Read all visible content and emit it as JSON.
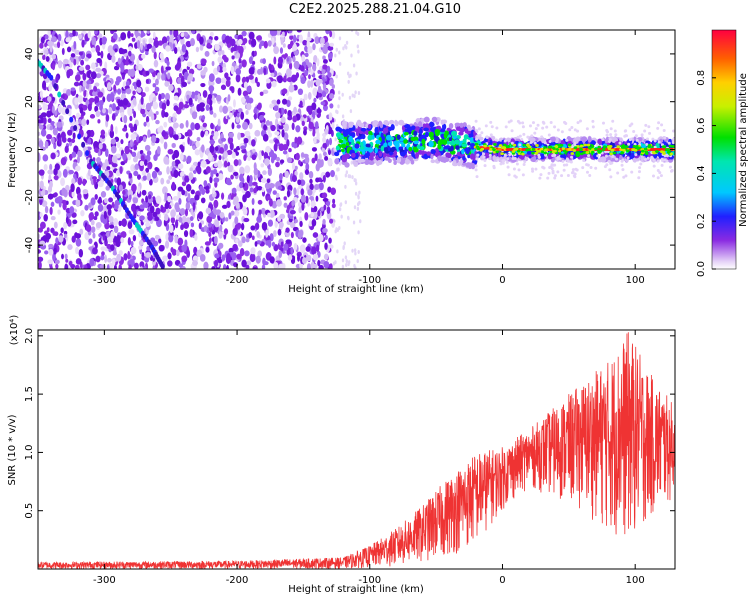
{
  "title": "C2E2.2025.288.21.04.G10",
  "chart_data": [
    {
      "type": "heatmap",
      "xlabel": "Height of straight line (km)",
      "ylabel": "Frequency (Hz)",
      "xlim": [
        -350,
        130
      ],
      "ylim": [
        -50,
        50
      ],
      "xticks": [
        -300,
        -200,
        -100,
        0,
        100
      ],
      "yticks": [
        -40,
        -20,
        0,
        20,
        40
      ],
      "colorbar": {
        "label": "Normalized spectral amplitude",
        "range": [
          0,
          1
        ],
        "ticks": [
          0.0,
          0.2,
          0.4,
          0.6,
          0.8
        ]
      },
      "noise_region_x": [
        -350,
        -127
      ],
      "signal_track": [
        {
          "x": -125,
          "y": 2
        },
        {
          "x": -100,
          "y": 3
        },
        {
          "x": -75,
          "y": 3
        },
        {
          "x": -50,
          "y": 4
        },
        {
          "x": -30,
          "y": 2
        },
        {
          "x": -20,
          "y": 1
        },
        {
          "x": 0,
          "y": 0
        },
        {
          "x": 50,
          "y": 0
        },
        {
          "x": 100,
          "y": 0
        },
        {
          "x": 130,
          "y": 0
        }
      ],
      "diagonal_trace": [
        {
          "x": -355,
          "y": 40
        },
        {
          "x": -340,
          "y": 30
        },
        {
          "x": -310,
          "y": -5
        },
        {
          "x": -295,
          "y": -15
        },
        {
          "x": -280,
          "y": -28
        },
        {
          "x": -265,
          "y": -40
        },
        {
          "x": -255,
          "y": -50
        }
      ]
    },
    {
      "type": "line",
      "xlabel": "Height of straight line (km)",
      "ylabel": "SNR (10 * v/v)",
      "yscale_label": "(x10⁴)",
      "xlim": [
        -350,
        130
      ],
      "ylim": [
        0,
        2.05
      ],
      "xticks": [
        -300,
        -200,
        -100,
        0,
        100
      ],
      "yticks": [
        0.5,
        1.0,
        1.5,
        2.0
      ],
      "series": [
        {
          "name": "SNR",
          "color": "#ef3333",
          "envelope": [
            {
              "x": -350,
              "lo": 0.0,
              "hi": 0.06
            },
            {
              "x": -200,
              "lo": 0.0,
              "hi": 0.07
            },
            {
              "x": -120,
              "lo": 0.0,
              "hi": 0.1
            },
            {
              "x": -100,
              "lo": 0.01,
              "hi": 0.2
            },
            {
              "x": -80,
              "lo": 0.02,
              "hi": 0.35
            },
            {
              "x": -60,
              "lo": 0.05,
              "hi": 0.55
            },
            {
              "x": -40,
              "lo": 0.1,
              "hi": 0.8
            },
            {
              "x": -20,
              "lo": 0.2,
              "hi": 1.0
            },
            {
              "x": 0,
              "lo": 0.5,
              "hi": 1.05
            },
            {
              "x": 20,
              "lo": 0.7,
              "hi": 1.2
            },
            {
              "x": 40,
              "lo": 0.6,
              "hi": 1.4
            },
            {
              "x": 60,
              "lo": 0.5,
              "hi": 1.6
            },
            {
              "x": 80,
              "lo": 0.3,
              "hi": 1.8
            },
            {
              "x": 95,
              "lo": 0.2,
              "hi": 2.05
            },
            {
              "x": 110,
              "lo": 0.4,
              "hi": 1.7
            },
            {
              "x": 130,
              "lo": 0.6,
              "hi": 1.4
            }
          ]
        }
      ]
    }
  ]
}
